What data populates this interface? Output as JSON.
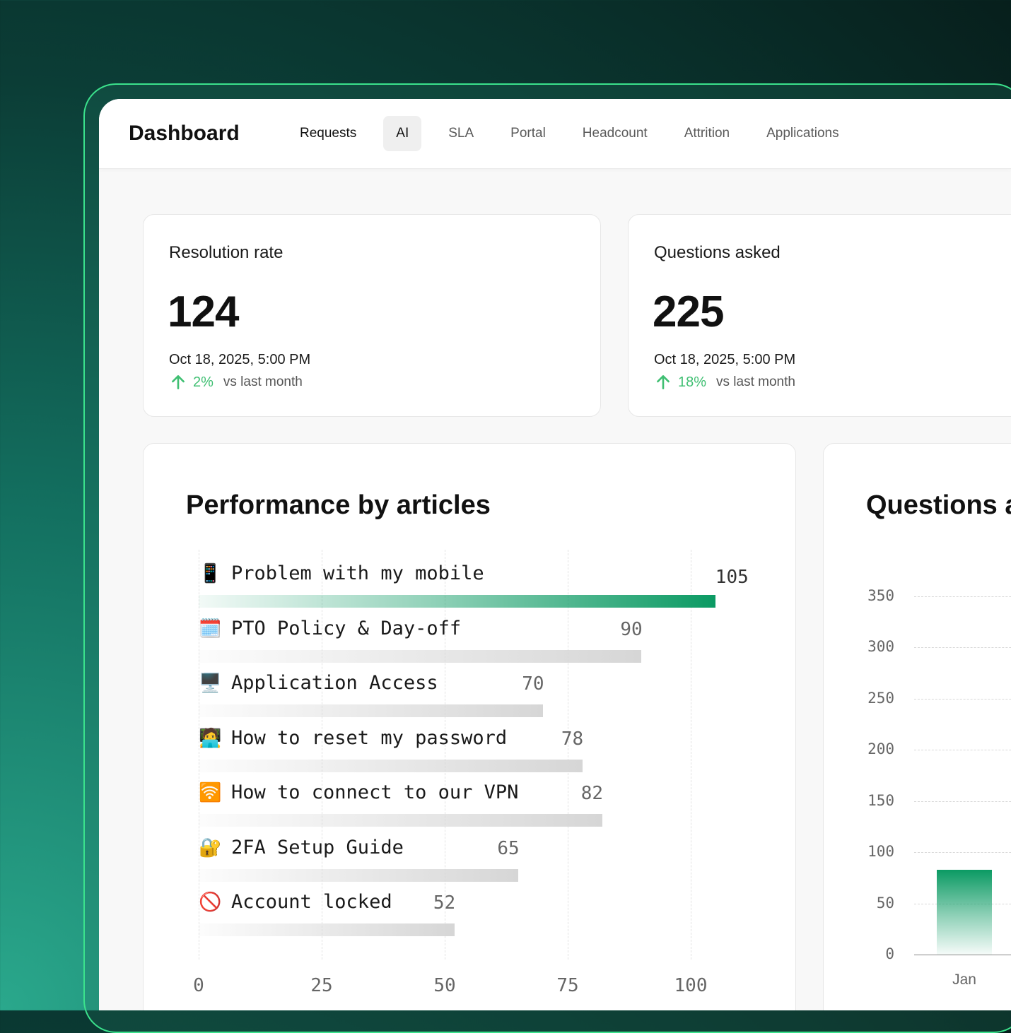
{
  "header": {
    "title": "Dashboard",
    "tabs": [
      {
        "label": "Requests"
      },
      {
        "label": "AI"
      },
      {
        "label": "SLA"
      },
      {
        "label": "Portal"
      },
      {
        "label": "Headcount"
      },
      {
        "label": "Attrition"
      },
      {
        "label": "Applications"
      }
    ],
    "selected_tab": "AI"
  },
  "stats": [
    {
      "label": "Resolution rate",
      "value": "124",
      "date": "Oct 18, 2025, 5:00 PM",
      "change": "2%",
      "change_note": "vs last month"
    },
    {
      "label": "Questions asked",
      "value": "225",
      "date": "Oct 18, 2025, 5:00 PM",
      "change": "18%",
      "change_note": "vs last month"
    }
  ],
  "colors": {
    "accent_green": "#0b9a63",
    "change_green": "#3fbf72",
    "frame_green": "#3be28c"
  },
  "performance": {
    "title": "Performance by articles",
    "chart_data": {
      "type": "bar",
      "orientation": "horizontal",
      "categories": [
        "Problem with my mobile",
        "PTO Policy & Day-off",
        "Application Access",
        "How to reset my password",
        "How to connect to our VPN",
        "2FA Setup Guide",
        "Account locked"
      ],
      "icons": [
        "📱",
        "🗓️",
        "🖥️",
        "🧑‍💻",
        "🛜",
        "🔐",
        "🚫"
      ],
      "values": [
        105,
        90,
        70,
        78,
        82,
        65,
        52
      ],
      "value_labels": [
        "105",
        "90",
        "70",
        "78",
        "82",
        "65",
        "52"
      ],
      "xticks": [
        "0",
        "25",
        "50",
        "75",
        "100"
      ],
      "xlim": [
        0,
        100
      ],
      "grid": true,
      "highlight_index": 0
    }
  },
  "questions": {
    "title": "Questions a",
    "chart_data": {
      "type": "bar",
      "categories": [
        "Jan"
      ],
      "values": [
        83
      ],
      "yticks": [
        "350",
        "300",
        "250",
        "200",
        "150",
        "100",
        "50",
        "0"
      ],
      "ylim": [
        0,
        350
      ],
      "grid": true
    }
  }
}
